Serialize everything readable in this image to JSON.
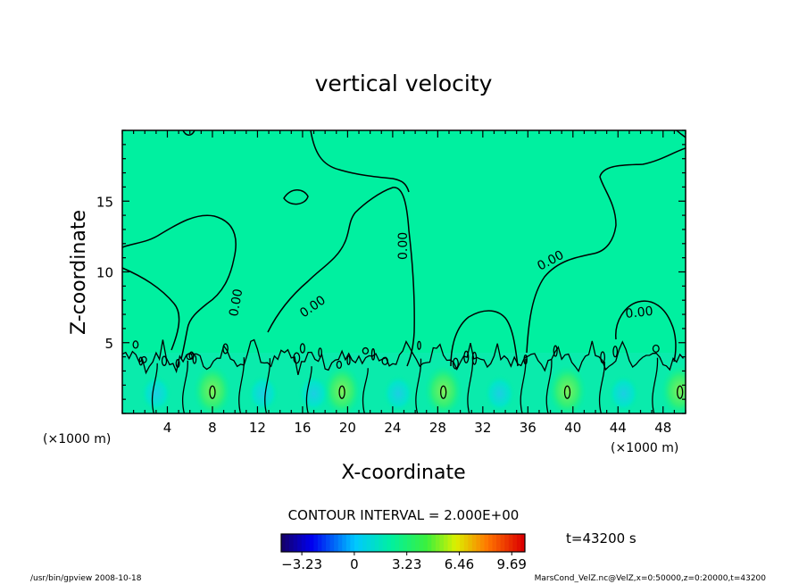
{
  "chart_data": {
    "type": "heatmap",
    "title": "vertical velocity",
    "xlabel": "X-coordinate",
    "ylabel": "Z-coordinate",
    "x_unit_left": "(×1000 m)",
    "x_unit_right": "(×1000 m)",
    "xlim": [
      0,
      50
    ],
    "ylim": [
      0,
      20
    ],
    "x_ticks": [
      4,
      8,
      12,
      16,
      20,
      24,
      28,
      32,
      36,
      40,
      44,
      48
    ],
    "y_ticks": [
      5,
      10,
      15
    ],
    "contour_interval_text": "CONTOUR INTERVAL = 2.000E+00",
    "contour_labels": [
      "0.00",
      "0.00",
      "0.00",
      "0.00",
      "0.00",
      "0.00"
    ],
    "time_label": "t=43200 s",
    "colorbar": {
      "range": [
        -4.5,
        10.5
      ],
      "ticks": [
        -3.23,
        0,
        3.23,
        6.46,
        9.69
      ],
      "tick_labels": [
        "−3.23",
        "0",
        "3.23",
        "6.46",
        "9.69"
      ]
    },
    "updraft_cores_x": [
      8,
      19.5,
      28.5,
      39.5,
      49.5
    ],
    "background_color": "#00f0a0"
  },
  "footer": {
    "left": "/usr/bin/gpview  2008-10-18",
    "right": "MarsCond_VelZ.nc@VelZ,x=0:50000,z=0:20000,t=43200"
  }
}
